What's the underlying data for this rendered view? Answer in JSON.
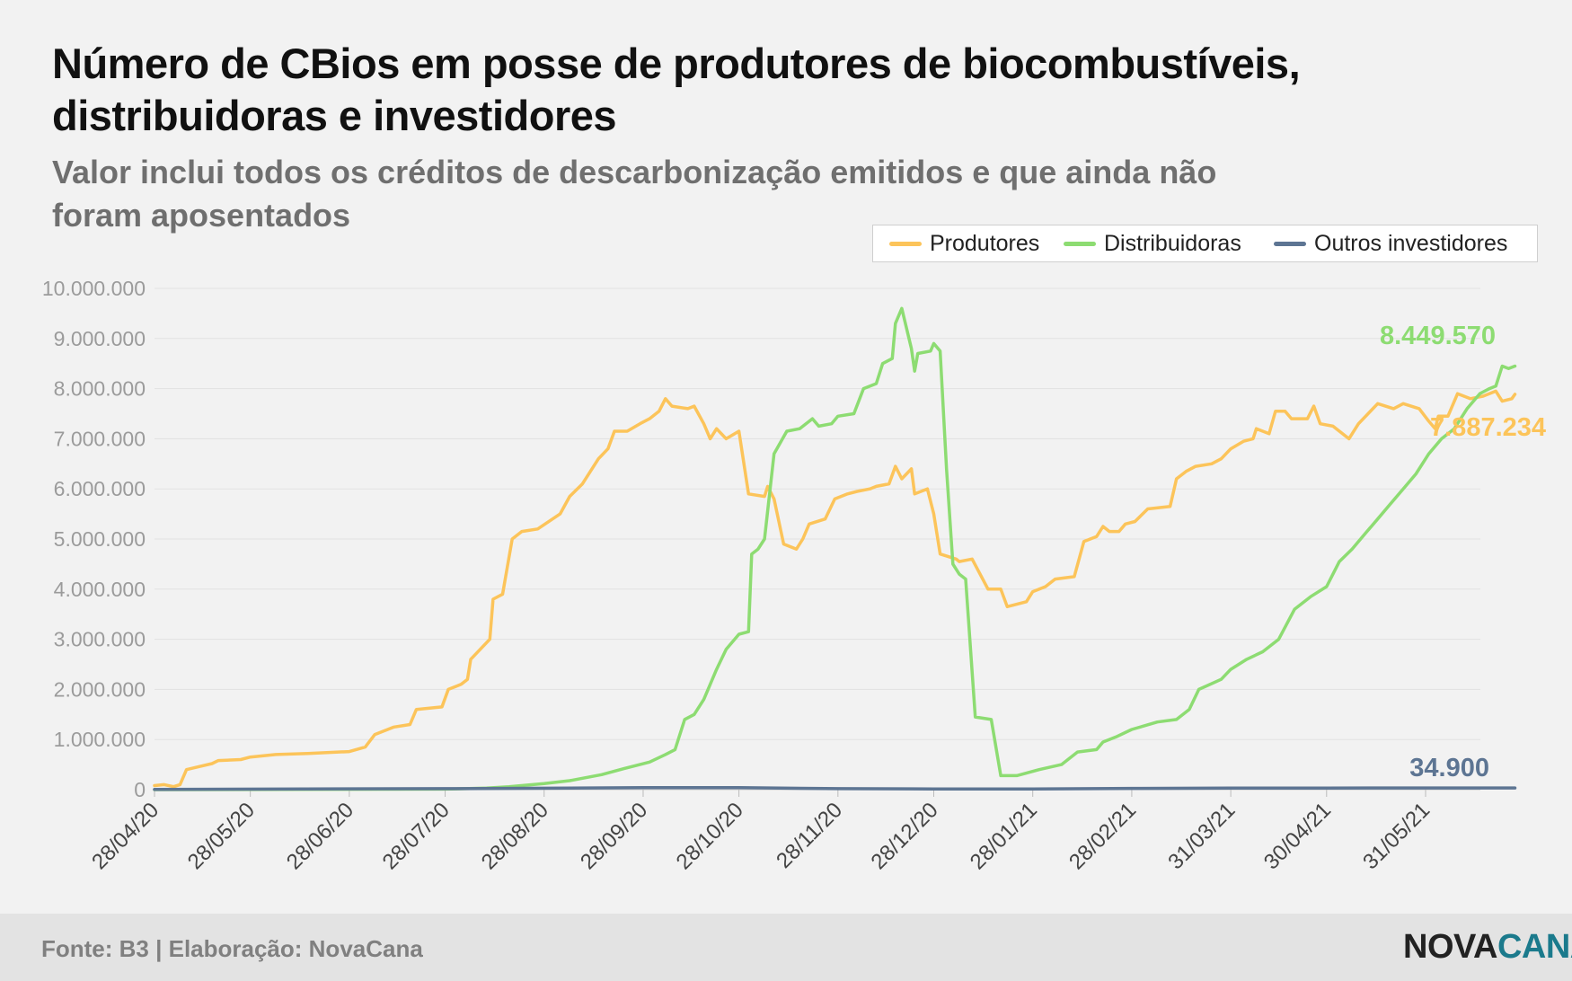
{
  "title": "Número de CBios em posse de produtores de biocombustíveis, distribuidoras e investidores",
  "subtitle": "Valor inclui todos os créditos de descarbonização emitidos e que ainda não foram aposentados",
  "footer": {
    "source": "Fonte: B3 | Elaboração: NovaCana",
    "brand_part1": "NOVA",
    "brand_part2": "CANA"
  },
  "colors": {
    "Produtores": "#fcc45a",
    "Distribuidoras": "#8ddc72",
    "Outros investidores": "#5d7593",
    "grid": "#e1e1e1",
    "tick": "#9b9b9b",
    "xtick": "#444444"
  },
  "chart_data": {
    "type": "line",
    "title": "Número de CBios em posse de produtores de biocombustíveis, distribuidoras e investidores",
    "xlabel": "",
    "ylabel": "",
    "ylim": [
      0,
      10000000
    ],
    "xlim": [
      "2020-04-28",
      "2021-06-18"
    ],
    "y_ticks": [
      0,
      1000000,
      2000000,
      3000000,
      4000000,
      5000000,
      6000000,
      7000000,
      8000000,
      9000000,
      10000000
    ],
    "y_tick_labels": [
      "0",
      "1.000.000",
      "2.000.000",
      "3.000.000",
      "4.000.000",
      "5.000.000",
      "6.000.000",
      "7.000.000",
      "8.000.000",
      "9.000.000",
      "10.000.000"
    ],
    "x_ticks": [
      "2020-04-28",
      "2020-05-28",
      "2020-06-28",
      "2020-07-28",
      "2020-08-28",
      "2020-09-28",
      "2020-10-28",
      "2020-11-28",
      "2020-12-28",
      "2021-01-28",
      "2021-02-28",
      "2021-03-31",
      "2021-04-30",
      "2021-05-31"
    ],
    "x_tick_labels": [
      "28/04/20",
      "28/05/20",
      "28/06/20",
      "28/07/20",
      "28/08/20",
      "28/09/20",
      "28/10/20",
      "28/11/20",
      "28/12/20",
      "28/01/21",
      "28/02/21",
      "31/03/21",
      "30/04/21",
      "31/05/21"
    ],
    "grid": true,
    "legend_position": "top-right",
    "series": [
      {
        "name": "Produtores",
        "end_label": "7.887.234",
        "points": [
          [
            "2020-04-28",
            80000
          ],
          [
            "2020-05-01",
            100000
          ],
          [
            "2020-05-04",
            60000
          ],
          [
            "2020-05-06",
            100000
          ],
          [
            "2020-05-08",
            400000
          ],
          [
            "2020-05-12",
            460000
          ],
          [
            "2020-05-16",
            520000
          ],
          [
            "2020-05-18",
            580000
          ],
          [
            "2020-05-25",
            600000
          ],
          [
            "2020-05-28",
            650000
          ],
          [
            "2020-06-05",
            700000
          ],
          [
            "2020-06-15",
            720000
          ],
          [
            "2020-06-28",
            760000
          ],
          [
            "2020-07-03",
            850000
          ],
          [
            "2020-07-06",
            1100000
          ],
          [
            "2020-07-12",
            1250000
          ],
          [
            "2020-07-17",
            1300000
          ],
          [
            "2020-07-19",
            1600000
          ],
          [
            "2020-07-27",
            1650000
          ],
          [
            "2020-07-29",
            2000000
          ],
          [
            "2020-08-02",
            2100000
          ],
          [
            "2020-08-04",
            2200000
          ],
          [
            "2020-08-05",
            2600000
          ],
          [
            "2020-08-11",
            3000000
          ],
          [
            "2020-08-12",
            3800000
          ],
          [
            "2020-08-15",
            3900000
          ],
          [
            "2020-08-18",
            5000000
          ],
          [
            "2020-08-21",
            5150000
          ],
          [
            "2020-08-26",
            5200000
          ],
          [
            "2020-09-02",
            5500000
          ],
          [
            "2020-09-05",
            5850000
          ],
          [
            "2020-09-09",
            6100000
          ],
          [
            "2020-09-14",
            6600000
          ],
          [
            "2020-09-17",
            6800000
          ],
          [
            "2020-09-19",
            7150000
          ],
          [
            "2020-09-23",
            7150000
          ],
          [
            "2020-09-27",
            7300000
          ],
          [
            "2020-09-30",
            7400000
          ],
          [
            "2020-10-03",
            7550000
          ],
          [
            "2020-10-05",
            7800000
          ],
          [
            "2020-10-07",
            7650000
          ],
          [
            "2020-10-12",
            7600000
          ],
          [
            "2020-10-14",
            7650000
          ],
          [
            "2020-10-17",
            7300000
          ],
          [
            "2020-10-19",
            7000000
          ],
          [
            "2020-10-21",
            7200000
          ],
          [
            "2020-10-24",
            7000000
          ],
          [
            "2020-10-28",
            7150000
          ],
          [
            "2020-10-31",
            5900000
          ],
          [
            "2020-11-05",
            5850000
          ],
          [
            "2020-11-06",
            6050000
          ],
          [
            "2020-11-08",
            5800000
          ],
          [
            "2020-11-11",
            4900000
          ],
          [
            "2020-11-15",
            4800000
          ],
          [
            "2020-11-17",
            5000000
          ],
          [
            "2020-11-19",
            5300000
          ],
          [
            "2020-11-24",
            5400000
          ],
          [
            "2020-11-27",
            5800000
          ],
          [
            "2020-12-01",
            5900000
          ],
          [
            "2020-12-04",
            5950000
          ],
          [
            "2020-12-08",
            6000000
          ],
          [
            "2020-12-10",
            6050000
          ],
          [
            "2020-12-14",
            6100000
          ],
          [
            "2020-12-16",
            6450000
          ],
          [
            "2020-12-18",
            6200000
          ],
          [
            "2020-12-21",
            6400000
          ],
          [
            "2020-12-22",
            5900000
          ],
          [
            "2020-12-26",
            6000000
          ],
          [
            "2020-12-28",
            5500000
          ],
          [
            "2020-12-30",
            4700000
          ],
          [
            "2021-01-04",
            4600000
          ],
          [
            "2021-01-05",
            4550000
          ],
          [
            "2021-01-09",
            4600000
          ],
          [
            "2021-01-14",
            4000000
          ],
          [
            "2021-01-18",
            4000000
          ],
          [
            "2021-01-20",
            3650000
          ],
          [
            "2021-01-26",
            3750000
          ],
          [
            "2021-01-28",
            3950000
          ],
          [
            "2021-02-01",
            4050000
          ],
          [
            "2021-02-04",
            4200000
          ],
          [
            "2021-02-10",
            4250000
          ],
          [
            "2021-02-13",
            4950000
          ],
          [
            "2021-02-17",
            5050000
          ],
          [
            "2021-02-19",
            5250000
          ],
          [
            "2021-02-21",
            5150000
          ],
          [
            "2021-02-24",
            5150000
          ],
          [
            "2021-02-26",
            5300000
          ],
          [
            "2021-03-01",
            5350000
          ],
          [
            "2021-03-05",
            5600000
          ],
          [
            "2021-03-12",
            5650000
          ],
          [
            "2021-03-14",
            6200000
          ],
          [
            "2021-03-17",
            6350000
          ],
          [
            "2021-03-20",
            6450000
          ],
          [
            "2021-03-25",
            6500000
          ],
          [
            "2021-03-28",
            6600000
          ],
          [
            "2021-03-31",
            6800000
          ],
          [
            "2021-04-04",
            6950000
          ],
          [
            "2021-04-07",
            7000000
          ],
          [
            "2021-04-08",
            7200000
          ],
          [
            "2021-04-12",
            7100000
          ],
          [
            "2021-04-14",
            7550000
          ],
          [
            "2021-04-17",
            7550000
          ],
          [
            "2021-04-19",
            7400000
          ],
          [
            "2021-04-24",
            7400000
          ],
          [
            "2021-04-26",
            7650000
          ],
          [
            "2021-04-28",
            7300000
          ],
          [
            "2021-05-02",
            7250000
          ],
          [
            "2021-05-07",
            7000000
          ],
          [
            "2021-05-10",
            7300000
          ],
          [
            "2021-05-13",
            7500000
          ],
          [
            "2021-05-16",
            7700000
          ],
          [
            "2021-05-21",
            7600000
          ],
          [
            "2021-05-24",
            7700000
          ],
          [
            "2021-05-29",
            7600000
          ],
          [
            "2021-06-01",
            7350000
          ],
          [
            "2021-06-03",
            7200000
          ],
          [
            "2021-06-04",
            7450000
          ],
          [
            "2021-06-07",
            7450000
          ],
          [
            "2021-06-10",
            7900000
          ],
          [
            "2021-06-14",
            7800000
          ],
          [
            "2021-06-18",
            7850000
          ],
          [
            "2021-06-22",
            7950000
          ],
          [
            "2021-06-24",
            7750000
          ],
          [
            "2021-06-27",
            7800000
          ],
          [
            "2021-06-28",
            7887234
          ]
        ]
      },
      {
        "name": "Distribuidoras",
        "end_label": "8.449.570",
        "points": [
          [
            "2020-04-28",
            0
          ],
          [
            "2020-07-28",
            10000
          ],
          [
            "2020-08-10",
            30000
          ],
          [
            "2020-08-17",
            60000
          ],
          [
            "2020-08-28",
            120000
          ],
          [
            "2020-09-05",
            180000
          ],
          [
            "2020-09-15",
            300000
          ],
          [
            "2020-09-22",
            420000
          ],
          [
            "2020-09-30",
            550000
          ],
          [
            "2020-10-05",
            700000
          ],
          [
            "2020-10-08",
            800000
          ],
          [
            "2020-10-11",
            1400000
          ],
          [
            "2020-10-14",
            1500000
          ],
          [
            "2020-10-17",
            1800000
          ],
          [
            "2020-10-21",
            2400000
          ],
          [
            "2020-10-24",
            2800000
          ],
          [
            "2020-10-28",
            3100000
          ],
          [
            "2020-10-31",
            3150000
          ],
          [
            "2020-11-01",
            4700000
          ],
          [
            "2020-11-03",
            4800000
          ],
          [
            "2020-11-05",
            5000000
          ],
          [
            "2020-11-08",
            6700000
          ],
          [
            "2020-11-12",
            7150000
          ],
          [
            "2020-11-16",
            7200000
          ],
          [
            "2020-11-20",
            7400000
          ],
          [
            "2020-11-22",
            7250000
          ],
          [
            "2020-11-26",
            7300000
          ],
          [
            "2020-11-28",
            7450000
          ],
          [
            "2020-12-03",
            7500000
          ],
          [
            "2020-12-06",
            8000000
          ],
          [
            "2020-12-10",
            8100000
          ],
          [
            "2020-12-12",
            8500000
          ],
          [
            "2020-12-15",
            8600000
          ],
          [
            "2020-12-16",
            9300000
          ],
          [
            "2020-12-18",
            9600000
          ],
          [
            "2020-12-21",
            8800000
          ],
          [
            "2020-12-22",
            8350000
          ],
          [
            "2020-12-23",
            8700000
          ],
          [
            "2020-12-27",
            8750000
          ],
          [
            "2020-12-28",
            8900000
          ],
          [
            "2020-12-30",
            8750000
          ],
          [
            "2021-01-01",
            6400000
          ],
          [
            "2021-01-03",
            4500000
          ],
          [
            "2021-01-05",
            4300000
          ],
          [
            "2021-01-07",
            4200000
          ],
          [
            "2021-01-10",
            1450000
          ],
          [
            "2021-01-15",
            1400000
          ],
          [
            "2021-01-18",
            280000
          ],
          [
            "2021-01-23",
            280000
          ],
          [
            "2021-01-30",
            400000
          ],
          [
            "2021-02-06",
            500000
          ],
          [
            "2021-02-11",
            750000
          ],
          [
            "2021-02-17",
            800000
          ],
          [
            "2021-02-19",
            950000
          ],
          [
            "2021-02-23",
            1050000
          ],
          [
            "2021-02-28",
            1200000
          ],
          [
            "2021-03-08",
            1350000
          ],
          [
            "2021-03-14",
            1400000
          ],
          [
            "2021-03-18",
            1600000
          ],
          [
            "2021-03-21",
            2000000
          ],
          [
            "2021-03-28",
            2200000
          ],
          [
            "2021-03-31",
            2400000
          ],
          [
            "2021-04-05",
            2600000
          ],
          [
            "2021-04-10",
            2750000
          ],
          [
            "2021-04-15",
            3000000
          ],
          [
            "2021-04-20",
            3600000
          ],
          [
            "2021-04-25",
            3850000
          ],
          [
            "2021-04-30",
            4050000
          ],
          [
            "2021-05-04",
            4550000
          ],
          [
            "2021-05-08",
            4800000
          ],
          [
            "2021-05-12",
            5100000
          ],
          [
            "2021-05-16",
            5400000
          ],
          [
            "2021-05-20",
            5700000
          ],
          [
            "2021-05-24",
            6000000
          ],
          [
            "2021-05-28",
            6300000
          ],
          [
            "2021-06-01",
            6700000
          ],
          [
            "2021-06-05",
            7000000
          ],
          [
            "2021-06-09",
            7200000
          ],
          [
            "2021-06-13",
            7600000
          ],
          [
            "2021-06-17",
            7900000
          ],
          [
            "2021-06-20",
            8000000
          ],
          [
            "2021-06-22",
            8050000
          ],
          [
            "2021-06-24",
            8450000
          ],
          [
            "2021-06-26",
            8400000
          ],
          [
            "2021-06-28",
            8449570
          ]
        ]
      },
      {
        "name": "Outros investidores",
        "end_label": "34.900",
        "points": [
          [
            "2020-04-28",
            5000
          ],
          [
            "2020-07-28",
            20000
          ],
          [
            "2020-09-28",
            40000
          ],
          [
            "2020-10-28",
            40000
          ],
          [
            "2020-11-28",
            20000
          ],
          [
            "2020-12-28",
            15000
          ],
          [
            "2021-01-28",
            15000
          ],
          [
            "2021-02-28",
            25000
          ],
          [
            "2021-03-31",
            30000
          ],
          [
            "2021-04-30",
            32000
          ],
          [
            "2021-05-31",
            34000
          ],
          [
            "2021-06-28",
            34900
          ]
        ]
      }
    ]
  }
}
